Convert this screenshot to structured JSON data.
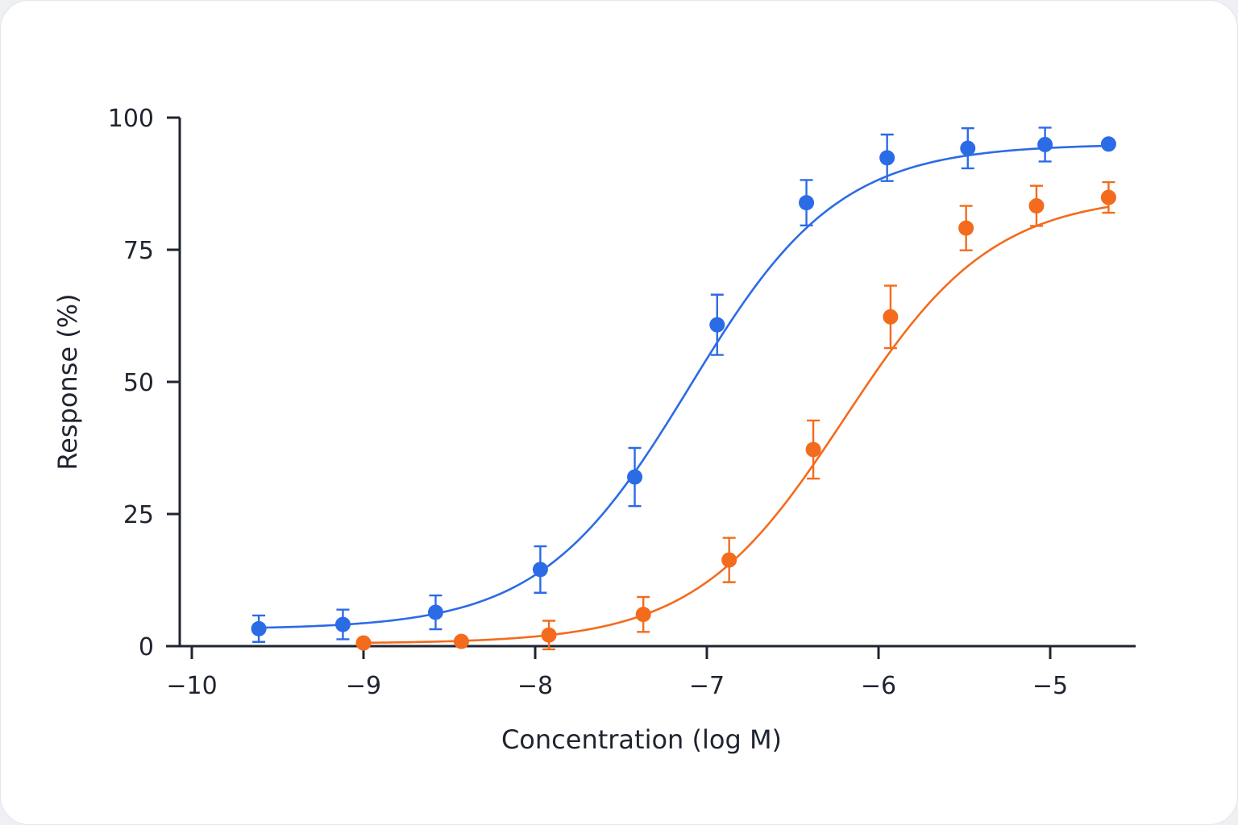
{
  "chart_data": {
    "type": "scatter",
    "title": "",
    "xlabel": "Concentration (log M)",
    "ylabel": "Response (%)",
    "xlim": [
      -10,
      -4.6
    ],
    "ylim": [
      0,
      100
    ],
    "x_ticks": [
      -10,
      -9,
      -8,
      -7,
      -6,
      -5
    ],
    "x_tick_labels": [
      "−10",
      "−9",
      "−8",
      "−7",
      "−6",
      "−5"
    ],
    "y_ticks": [
      0,
      25,
      50,
      75,
      100
    ],
    "y_tick_labels": [
      "0",
      "25",
      "50",
      "75",
      "100"
    ],
    "grid": false,
    "legend": "none",
    "series": [
      {
        "color": "#2b6be6",
        "x": [
          -9.61,
          -9.12,
          -8.58,
          -7.97,
          -7.42,
          -6.94,
          -6.42,
          -5.95,
          -5.48,
          -5.03,
          -4.66
        ],
        "y": [
          3.3,
          4.1,
          6.4,
          14.5,
          32.0,
          60.8,
          83.9,
          92.4,
          94.2,
          94.9,
          95.0
        ],
        "err": [
          2.5,
          2.8,
          3.2,
          4.4,
          5.5,
          5.7,
          4.3,
          4.4,
          3.8,
          3.2,
          0
        ],
        "fit": {
          "bottom": 3.2,
          "top": 95.0,
          "log_ec50": -7.1,
          "hill": 1.0
        }
      },
      {
        "color": "#f36b1c",
        "x": [
          -9.0,
          -8.43,
          -7.92,
          -7.37,
          -6.87,
          -6.38,
          -5.93,
          -5.49,
          -5.08,
          -4.66
        ],
        "y": [
          0.6,
          0.9,
          2.1,
          6.0,
          16.3,
          37.2,
          62.3,
          79.1,
          83.3,
          84.9
        ],
        "err": [
          0,
          0,
          2.7,
          3.3,
          4.2,
          5.5,
          5.9,
          4.2,
          3.8,
          2.9
        ],
        "fit": {
          "bottom": 0.5,
          "top": 85.5,
          "log_ec50": -6.2,
          "hill": 1.0
        }
      }
    ]
  }
}
